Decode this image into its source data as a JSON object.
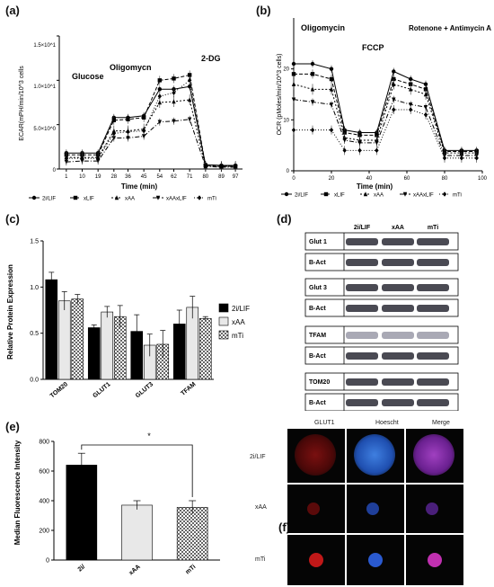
{
  "panels": {
    "a": {
      "label": "(a)",
      "ylabel": "ECAR(mPH/min/10^3 cells",
      "xlabel": "Time (min)",
      "yticks": [
        "0",
        "5.0×10^0",
        "1.0×10^1",
        "1.5×10^1"
      ],
      "annotations": [
        "Glucose",
        "Oligomycn",
        "2-DG"
      ],
      "legend": [
        "2i/LIF",
        "xLIF",
        "xAA",
        "xAAxLIF",
        "mTi"
      ]
    },
    "b": {
      "label": "(b)",
      "ylabel": "OCR (pMoles/min/10^3 cells)",
      "xlabel": "Time (min)",
      "annotations": [
        "Oligomycin",
        "FCCP",
        "Rotenone + Antimycin A"
      ],
      "legend": [
        "2i/LIF",
        "xLIF",
        "xAA",
        "xAAxLIF",
        "mTi"
      ]
    },
    "c": {
      "label": "(c)",
      "ylabel": "Relative Protein Expression",
      "legend": [
        "2i/LIF",
        "xAA",
        "mTi"
      ]
    },
    "d": {
      "label": "(d)",
      "columns": [
        "2i/LIF",
        "xAA",
        "mTi"
      ],
      "rows": [
        "Glut 1",
        "B-Act",
        "Glut 3",
        "B-Act",
        "TFAM",
        "B-Act",
        "TOM20",
        "B-Act"
      ]
    },
    "e": {
      "label": "(e)",
      "ylabel": "Median Fluorescence Intensity",
      "significance": "*"
    },
    "f": {
      "label": "(f)",
      "columns": [
        "GLUT1",
        "Hoescht",
        "Merge"
      ],
      "rows": [
        "2i/LIF",
        "xAA",
        "mTi"
      ]
    }
  },
  "chart_data": [
    {
      "id": "a",
      "type": "line",
      "title": "",
      "xlabel": "Time (min)",
      "ylabel": "ECAR(mPH/min/10^3 cells",
      "x": [
        1,
        10,
        19,
        28,
        36,
        45,
        54,
        62,
        71,
        80,
        89,
        97
      ],
      "ylim": [
        0,
        15
      ],
      "series": [
        {
          "name": "2i/LIF",
          "values": [
            1.8,
            1.8,
            1.8,
            5.8,
            5.8,
            6.0,
            9.0,
            9.0,
            9.3,
            0.5,
            0.4,
            0.4
          ]
        },
        {
          "name": "xLIF",
          "values": [
            1.6,
            1.6,
            1.6,
            5.5,
            5.6,
            5.8,
            10.0,
            10.2,
            10.6,
            0.4,
            0.3,
            0.3
          ]
        },
        {
          "name": "xAA",
          "values": [
            1.3,
            1.3,
            1.3,
            4.3,
            4.3,
            4.5,
            7.5,
            7.6,
            7.8,
            0.3,
            0.3,
            0.3
          ]
        },
        {
          "name": "xAAxLIF",
          "values": [
            0.8,
            0.9,
            0.9,
            3.5,
            3.5,
            3.7,
            5.3,
            5.4,
            5.6,
            0.3,
            0.2,
            0.2
          ]
        },
        {
          "name": "mTi",
          "values": [
            1.2,
            1.2,
            1.2,
            4.0,
            4.2,
            4.3,
            8.2,
            8.6,
            10.0,
            0.3,
            0.3,
            0.3
          ]
        }
      ]
    },
    {
      "id": "b",
      "type": "line",
      "title": "",
      "xlabel": "Time (min)",
      "ylabel": "OCR (pMoles/min/10^3 cells)",
      "x": [
        0,
        10,
        20,
        27,
        35,
        44,
        53,
        62,
        70,
        80,
        89,
        97
      ],
      "xticks": [
        0,
        20,
        40,
        60,
        80,
        100
      ],
      "yticks": [
        0,
        10,
        20
      ],
      "ylim": [
        0,
        30
      ],
      "series": [
        {
          "name": "2i/LIF",
          "values": [
            21,
            21,
            20,
            8,
            7.5,
            7.5,
            19.5,
            18,
            17,
            4,
            4,
            4
          ]
        },
        {
          "name": "xLIF",
          "values": [
            19,
            19,
            18,
            7.5,
            7,
            7,
            18,
            17,
            16,
            3.8,
            3.8,
            3.8
          ]
        },
        {
          "name": "xAA",
          "values": [
            17,
            16,
            16,
            6.5,
            6,
            6,
            17,
            16,
            15,
            3.5,
            3.5,
            3.5
          ]
        },
        {
          "name": "xAAxLIF",
          "values": [
            14,
            13.5,
            13,
            6,
            5.5,
            5.5,
            14,
            13,
            12.5,
            3,
            3,
            3
          ]
        },
        {
          "name": "mTi",
          "values": [
            8,
            8,
            8,
            4,
            4,
            4,
            12,
            12,
            11,
            2.5,
            2.5,
            2.5
          ]
        }
      ]
    },
    {
      "id": "c",
      "type": "bar",
      "title": "",
      "xlabel": "",
      "ylabel": "Relative Protein Expression",
      "categories": [
        "TOM20",
        "GLUT1",
        "GLUT3",
        "TFAM"
      ],
      "yticks": [
        "0.0",
        "0.5",
        "1.0",
        "1.5"
      ],
      "ylim": [
        0,
        1.5
      ],
      "series": [
        {
          "name": "2i/LIF",
          "values": [
            1.08,
            0.56,
            0.52,
            0.6
          ],
          "errors": [
            0.08,
            0.03,
            0.18,
            0.15
          ],
          "color": "#000000"
        },
        {
          "name": "xAA",
          "values": [
            0.85,
            0.73,
            0.37,
            0.78
          ],
          "errors": [
            0.1,
            0.06,
            0.12,
            0.12
          ],
          "color": "#e8e8e8"
        },
        {
          "name": "mTi",
          "values": [
            0.87,
            0.68,
            0.38,
            0.66
          ],
          "errors": [
            0.05,
            0.12,
            0.15,
            0.02
          ],
          "color": "checker"
        }
      ]
    },
    {
      "id": "e",
      "type": "bar",
      "title": "",
      "xlabel": "",
      "ylabel": "Median Fluorescence Intensity",
      "categories": [
        "2i/",
        "xAA",
        "mTi"
      ],
      "yticks": [
        "0",
        "200",
        "400",
        "600",
        "800"
      ],
      "ylim": [
        0,
        800
      ],
      "values": [
        640,
        370,
        355
      ],
      "errors": [
        80,
        30,
        45
      ],
      "colors": [
        "#000000",
        "#e8e8e8",
        "checker"
      ]
    }
  ]
}
